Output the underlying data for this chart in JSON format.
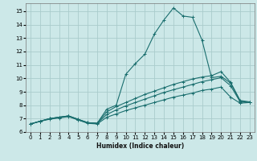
{
  "title": "",
  "xlabel": "Humidex (Indice chaleur)",
  "ylabel": "",
  "xlim": [
    -0.5,
    23.5
  ],
  "ylim": [
    6.0,
    15.6
  ],
  "yticks": [
    6,
    7,
    8,
    9,
    10,
    11,
    12,
    13,
    14,
    15
  ],
  "xticks": [
    0,
    1,
    2,
    3,
    4,
    5,
    6,
    7,
    8,
    9,
    10,
    11,
    12,
    13,
    14,
    15,
    16,
    17,
    18,
    19,
    20,
    21,
    22,
    23
  ],
  "bg_color": "#cce8e8",
  "grid_color": "#aacccc",
  "line_color": "#1a6e6e",
  "line1_y": [
    6.6,
    6.8,
    6.95,
    7.05,
    7.15,
    6.9,
    6.65,
    6.6,
    7.1,
    7.35,
    7.6,
    7.8,
    8.0,
    8.2,
    8.4,
    8.6,
    8.75,
    8.9,
    9.1,
    9.2,
    9.35,
    8.6,
    8.15,
    8.2
  ],
  "line2_y": [
    6.6,
    6.8,
    7.0,
    7.1,
    7.2,
    6.9,
    6.7,
    6.65,
    7.3,
    7.65,
    7.95,
    8.2,
    8.45,
    8.7,
    8.95,
    9.15,
    9.35,
    9.55,
    9.75,
    9.9,
    10.05,
    9.45,
    8.25,
    8.2
  ],
  "line3_y": [
    6.6,
    6.8,
    7.0,
    7.1,
    7.2,
    6.95,
    6.7,
    6.65,
    7.5,
    7.9,
    8.2,
    8.5,
    8.8,
    9.05,
    9.3,
    9.55,
    9.75,
    9.95,
    10.1,
    10.2,
    10.5,
    9.7,
    8.35,
    8.25
  ],
  "line4_y": [
    6.6,
    6.8,
    7.0,
    7.1,
    7.2,
    6.95,
    6.7,
    6.65,
    7.7,
    8.0,
    10.3,
    11.1,
    11.8,
    13.3,
    14.35,
    15.25,
    14.65,
    14.55,
    12.85,
    10.05,
    10.15,
    9.65,
    8.3,
    8.2
  ]
}
